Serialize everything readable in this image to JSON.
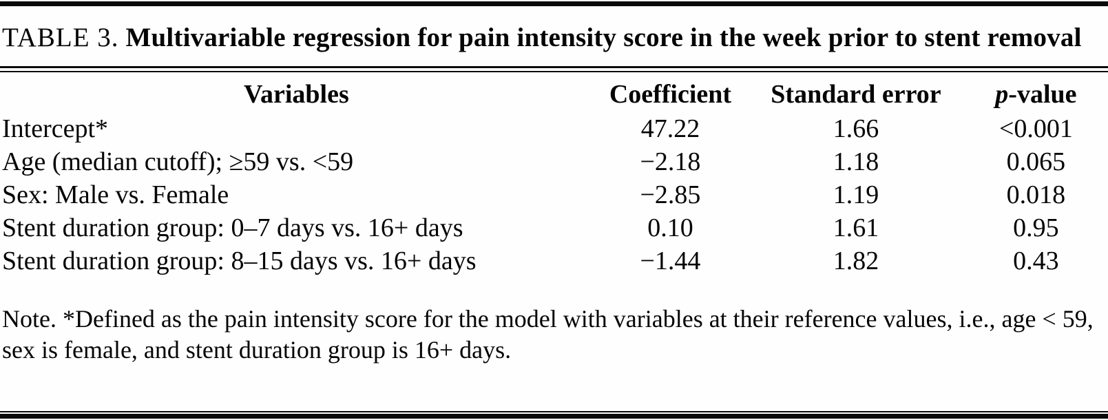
{
  "title": {
    "label": "TABLE 3.",
    "text": "Multivariable regression for pain intensity score in the week prior to stent removal"
  },
  "table": {
    "columns": [
      {
        "label": "Variables"
      },
      {
        "label": "Coefficient"
      },
      {
        "label": "Standard error"
      },
      {
        "label_italic": "p",
        "label_rest": "-value"
      }
    ],
    "rows": [
      {
        "variable": "Intercept*",
        "coefficient": "47.22",
        "standard_error": "1.66",
        "p_value": "<0.001"
      },
      {
        "variable": "Age (median cutoff); ≥59 vs. <59",
        "coefficient": "−2.18",
        "standard_error": "1.18",
        "p_value": "0.065"
      },
      {
        "variable": "Sex: Male vs. Female",
        "coefficient": "−2.85",
        "standard_error": "1.19",
        "p_value": "0.018"
      },
      {
        "variable": "Stent duration group: 0–7 days vs. 16+ days",
        "coefficient": "0.10",
        "standard_error": "1.61",
        "p_value": "0.95"
      },
      {
        "variable": "Stent duration group: 8–15 days vs. 16+ days",
        "coefficient": "−1.44",
        "standard_error": "1.82",
        "p_value": "0.43"
      }
    ]
  },
  "note": "Note. *Defined as the pain intensity score for the model with variables at their reference values, i.e., age < 59, sex is female, and stent duration group is 16+ days."
}
